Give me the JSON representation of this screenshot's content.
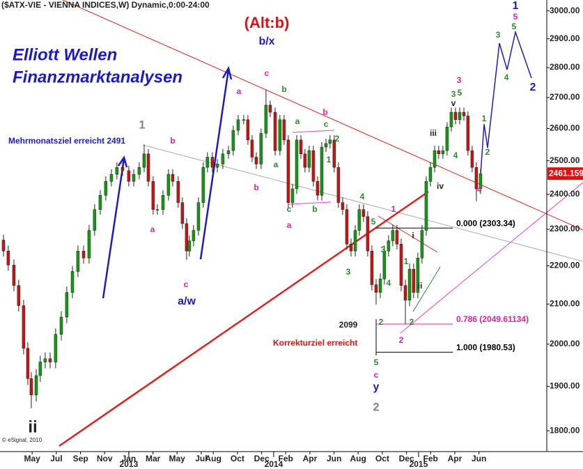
{
  "chart_data": {
    "type": "candlestick",
    "title": "($ATX-VIE - VIENNA INDICES,W) Dynamic,0:00-24:00",
    "scenario": "(Alt:b)",
    "brand": [
      "Elliott Wellen",
      "Finanzmarktanalysen"
    ],
    "copyright": "© eSignal, 2010",
    "log_scale": true,
    "up_color": "#139a13",
    "down_color": "#c81414",
    "xlim": [
      2012.111,
      2015.885
    ],
    "ylim": [
      1755,
      3040
    ],
    "yticks": [
      {
        "value": 1800,
        "label": "1800.00"
      },
      {
        "value": 1900,
        "label": "1900.00"
      },
      {
        "value": 2000,
        "label": "2000.00"
      },
      {
        "value": 2100,
        "label": "2100.00"
      },
      {
        "value": 2200,
        "label": "2200.00"
      },
      {
        "value": 2300,
        "label": "2300.00"
      },
      {
        "value": 2400,
        "label": "2400.00"
      },
      {
        "value": 2500,
        "label": "2500.00"
      },
      {
        "value": 2600,
        "label": "2600.00"
      },
      {
        "value": 2700,
        "label": "2700.00"
      },
      {
        "value": 2800,
        "label": "2800.00"
      },
      {
        "value": 2900,
        "label": "2900.00"
      },
      {
        "value": 3000,
        "label": "3000.00"
      }
    ],
    "xticks": [
      {
        "value": 2012.333,
        "label": "May"
      },
      {
        "value": 2012.5,
        "label": "Jul"
      },
      {
        "value": 2012.667,
        "label": "Sep"
      },
      {
        "value": 2012.833,
        "label": "Nov"
      },
      {
        "value": 2013.0,
        "label": "Jan"
      },
      {
        "value": 2013.167,
        "label": "Mar"
      },
      {
        "value": 2013.333,
        "label": "May"
      },
      {
        "value": 2013.5,
        "label": "Jul"
      },
      {
        "value": 2013.583,
        "label": "Aug"
      },
      {
        "value": 2013.75,
        "label": "Oct"
      },
      {
        "value": 2013.917,
        "label": "Dec"
      },
      {
        "value": 2014.083,
        "label": "Feb"
      },
      {
        "value": 2014.25,
        "label": "Apr"
      },
      {
        "value": 2014.417,
        "label": "Jun"
      },
      {
        "value": 2014.583,
        "label": "Aug"
      },
      {
        "value": 2014.75,
        "label": "Oct"
      },
      {
        "value": 2014.917,
        "label": "Dec"
      },
      {
        "value": 2015.083,
        "label": "Feb"
      },
      {
        "value": 2015.25,
        "label": "Apr"
      },
      {
        "value": 2015.417,
        "label": "Jun"
      }
    ],
    "year_ticks": [
      2013,
      2014,
      2015
    ],
    "last_price": {
      "value": 2461.159,
      "label": "2461.159"
    },
    "fib_levels": [
      {
        "value": 2303.34,
        "label": "0.000 (2303.34)",
        "color": "#000000"
      },
      {
        "value": 2049.61134,
        "label": "0.786 (2049.61134)",
        "color": "#e01fa6"
      },
      {
        "value": 1980.53,
        "label": "1.000 (1980.53)",
        "color": "#000000"
      }
    ],
    "x": [
      2012.135,
      2012.168,
      2012.207,
      2012.24,
      2012.274,
      2012.303,
      2012.327,
      2012.361,
      2012.389,
      2012.423,
      2012.457,
      2012.495,
      2012.534,
      2012.572,
      2012.611,
      2012.649,
      2012.688,
      2012.726,
      2012.764,
      2012.803,
      2012.841,
      2012.88,
      2012.918,
      2012.957,
      2013.0,
      2013.034,
      2013.072,
      2013.106,
      2013.135,
      2013.168,
      2013.197,
      2013.236,
      2013.274,
      2013.303,
      2013.341,
      2013.37,
      2013.399,
      2013.418,
      2013.447,
      2013.481,
      2013.514,
      2013.543,
      2013.577,
      2013.611,
      2013.649,
      2013.688,
      2013.721,
      2013.755,
      2013.793,
      2013.822,
      2013.851,
      2013.88,
      2013.913,
      2013.947,
      2013.976,
      2014.01,
      2014.043,
      2014.072,
      2014.101,
      2014.13,
      2014.159,
      2014.188,
      2014.216,
      2014.245,
      2014.274,
      2014.303,
      2014.332,
      2014.361,
      2014.389,
      2014.418,
      2014.447,
      2014.476,
      2014.505,
      2014.534,
      2014.563,
      2014.591,
      2014.62,
      2014.649,
      2014.678,
      2014.707,
      2014.736,
      2014.764,
      2014.793,
      2014.822,
      2014.851,
      2014.88,
      2014.909,
      2014.938,
      2014.966,
      2014.995,
      2015.024,
      2015.053,
      2015.082,
      2015.111,
      2015.139,
      2015.168,
      2015.197,
      2015.226,
      2015.255,
      2015.284,
      2015.313,
      2015.341,
      2015.37,
      2015.399,
      2015.428
    ],
    "open": [
      2270,
      2240,
      2202,
      2148,
      2096,
      1990,
      1918,
      1880,
      1925,
      1957,
      1965,
      1957,
      2024,
      2067,
      2130,
      2185,
      2240,
      2221,
      2297,
      2356,
      2397,
      2438,
      2459,
      2480,
      2470,
      2438,
      2459,
      2480,
      2521,
      2438,
      2356,
      2356,
      2397,
      2459,
      2438,
      2376,
      2316,
      2240,
      2268,
      2297,
      2376,
      2480,
      2511,
      2480,
      2490,
      2521,
      2531,
      2594,
      2628,
      2628,
      2564,
      2511,
      2490,
      2585,
      2675,
      2652,
      2531,
      2628,
      2564,
      2376,
      2416,
      2564,
      2521,
      2480,
      2531,
      2438,
      2397,
      2542,
      2553,
      2564,
      2480,
      2376,
      2356,
      2259,
      2240,
      2297,
      2356,
      2336,
      2240,
      2150,
      2130,
      2165,
      2240,
      2268,
      2297,
      2259,
      2148,
      2110,
      2191,
      2130,
      2221,
      2297,
      2438,
      2480,
      2531,
      2521,
      2531,
      2605,
      2652,
      2628,
      2652,
      2640,
      2531,
      2480,
      2416
    ],
    "high": [
      2285,
      2255,
      2217,
      2163,
      2111,
      2005,
      1933,
      1940,
      1972,
      1980,
      1980,
      2039,
      2082,
      2145,
      2200,
      2255,
      2255,
      2312,
      2371,
      2412,
      2453,
      2474,
      2495,
      2495,
      2485,
      2474,
      2495,
      2550,
      2536,
      2453,
      2371,
      2412,
      2474,
      2474,
      2453,
      2391,
      2331,
      2283,
      2312,
      2391,
      2495,
      2526,
      2526,
      2505,
      2536,
      2546,
      2609,
      2643,
      2643,
      2643,
      2579,
      2526,
      2600,
      2726,
      2690,
      2667,
      2643,
      2643,
      2579,
      2431,
      2579,
      2579,
      2536,
      2546,
      2546,
      2453,
      2557,
      2568,
      2579,
      2579,
      2495,
      2391,
      2371,
      2274,
      2312,
      2371,
      2371,
      2351,
      2255,
      2165,
      2180,
      2255,
      2283,
      2312,
      2312,
      2274,
      2163,
      2206,
      2206,
      2236,
      2312,
      2453,
      2495,
      2546,
      2546,
      2546,
      2620,
      2667,
      2667,
      2667,
      2667,
      2655,
      2546,
      2495,
      2476
    ],
    "low": [
      2225,
      2187,
      2133,
      2081,
      1975,
      1903,
      1850,
      1865,
      1910,
      1942,
      1942,
      1942,
      2009,
      2052,
      2115,
      2170,
      2206,
      2206,
      2282,
      2341,
      2382,
      2423,
      2444,
      2455,
      2423,
      2423,
      2444,
      2465,
      2423,
      2341,
      2341,
      2341,
      2382,
      2423,
      2361,
      2301,
      2216,
      2225,
      2253,
      2282,
      2361,
      2465,
      2465,
      2465,
      2475,
      2506,
      2516,
      2579,
      2613,
      2549,
      2496,
      2475,
      2475,
      2570,
      2637,
      2516,
      2516,
      2549,
      2361,
      2361,
      2401,
      2506,
      2465,
      2465,
      2423,
      2382,
      2382,
      2527,
      2538,
      2465,
      2361,
      2341,
      2244,
      2225,
      2225,
      2282,
      2321,
      2225,
      2135,
      2099,
      2115,
      2150,
      2225,
      2253,
      2244,
      2133,
      2050,
      2095,
      2115,
      2115,
      2206,
      2282,
      2423,
      2465,
      2506,
      2506,
      2516,
      2590,
      2613,
      2613,
      2625,
      2516,
      2465,
      2380,
      2401
    ],
    "close": [
      2240,
      2202,
      2148,
      2096,
      1990,
      1918,
      1880,
      1925,
      1957,
      1965,
      1957,
      2024,
      2067,
      2130,
      2185,
      2240,
      2221,
      2297,
      2356,
      2397,
      2438,
      2459,
      2480,
      2470,
      2438,
      2459,
      2480,
      2521,
      2438,
      2356,
      2356,
      2397,
      2459,
      2438,
      2376,
      2316,
      2240,
      2268,
      2297,
      2376,
      2480,
      2511,
      2480,
      2490,
      2521,
      2531,
      2594,
      2628,
      2628,
      2564,
      2511,
      2490,
      2585,
      2675,
      2652,
      2531,
      2628,
      2564,
      2376,
      2416,
      2564,
      2521,
      2480,
      2531,
      2438,
      2397,
      2542,
      2553,
      2564,
      2480,
      2376,
      2356,
      2259,
      2240,
      2297,
      2356,
      2336,
      2240,
      2150,
      2130,
      2165,
      2240,
      2268,
      2297,
      2259,
      2148,
      2110,
      2191,
      2130,
      2221,
      2297,
      2438,
      2480,
      2531,
      2521,
      2531,
      2605,
      2652,
      2628,
      2652,
      2640,
      2531,
      2480,
      2416,
      2461
    ],
    "annotations": [
      "Mehrmonatsziel erreicht 2491",
      "Korrekturziel erreicht",
      "2099",
      "1",
      "b",
      "a",
      "c",
      "a/w",
      "b/x",
      "c",
      "a",
      "b",
      "b",
      "a",
      "a",
      "c",
      "a",
      "b",
      "b",
      "c",
      "2",
      "1",
      "4",
      "3",
      "1",
      "5",
      "3",
      "4",
      "1",
      "i",
      "ii",
      "2",
      "2",
      "2",
      "5",
      "c",
      "y",
      "2",
      "iii",
      "iv",
      "4",
      "4",
      "3",
      "3",
      "5",
      "v",
      "1",
      "2",
      "3",
      "4",
      "5",
      "1",
      "5",
      "2",
      "ii"
    ]
  }
}
